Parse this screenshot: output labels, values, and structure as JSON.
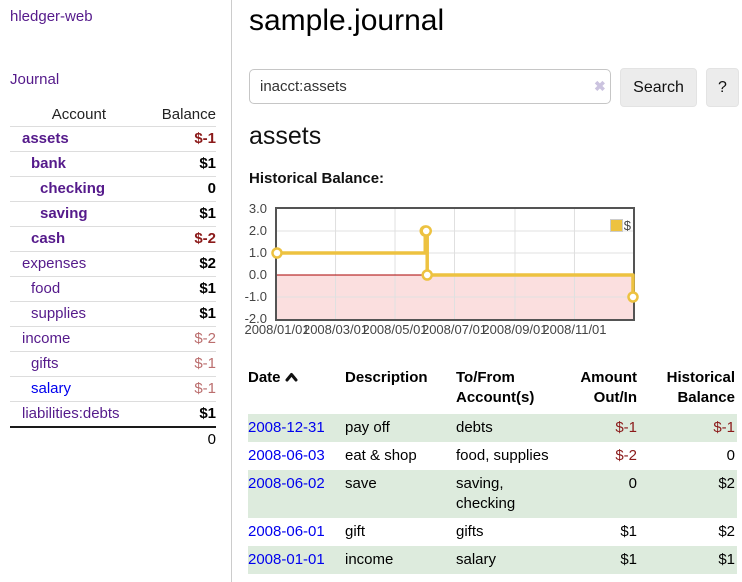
{
  "sidebar": {
    "app_title": "hledger-web",
    "nav": {
      "journal": "Journal"
    },
    "accounts_table": {
      "headers": {
        "account": "Account",
        "balance": "Balance"
      },
      "rows": [
        {
          "name": "assets",
          "balance": "$-1"
        },
        {
          "name": "bank",
          "balance": "$1"
        },
        {
          "name": "checking",
          "balance": "0"
        },
        {
          "name": "saving",
          "balance": "$1"
        },
        {
          "name": "cash",
          "balance": "$-2"
        },
        {
          "name": "expenses",
          "balance": "$2"
        },
        {
          "name": "food",
          "balance": "$1"
        },
        {
          "name": "supplies",
          "balance": "$1"
        },
        {
          "name": "income",
          "balance": "$-2"
        },
        {
          "name": "gifts",
          "balance": "$-1"
        },
        {
          "name": "salary",
          "balance": "$-1"
        },
        {
          "name": "liabilities:debts",
          "balance": "$1"
        }
      ],
      "total": "0"
    }
  },
  "main": {
    "title": "sample.journal",
    "search": {
      "query": "inacct:assets",
      "clear_icon": "✖",
      "button_label": "Search",
      "help_label": "?"
    },
    "account_heading": "assets",
    "chart_label": "Historical Balance:"
  },
  "chart_data": {
    "type": "line",
    "title": "Historical Balance",
    "series": [
      {
        "name": "$",
        "color": "#EDC240",
        "step": true,
        "dates": [
          "2008-01-01",
          "2008-06-01",
          "2008-06-02",
          "2008-06-03",
          "2008-12-31"
        ],
        "points_x_days": [
          0,
          152,
          153,
          154,
          365
        ],
        "values": [
          1,
          2,
          2,
          0,
          -1
        ]
      }
    ],
    "x_range_days": [
      0,
      365
    ],
    "x_ticks": [
      {
        "label": "2008/01/01",
        "day": 0
      },
      {
        "label": "2008/03/01",
        "day": 60
      },
      {
        "label": "2008/05/01",
        "day": 121
      },
      {
        "label": "2008/07/01",
        "day": 182
      },
      {
        "label": "2008/09/01",
        "day": 244
      },
      {
        "label": "2008/11/01",
        "day": 305
      }
    ],
    "y_ticks": [
      "3.0",
      "2.0",
      "1.0",
      "0.0",
      "-1.0",
      "-2.0"
    ],
    "ylim": [
      -2,
      3
    ],
    "legend": {
      "label": "$",
      "position": "top-right"
    },
    "grid": true,
    "grid_color": "#E0E0E0",
    "border_color": "#545454",
    "zero_line_color": "#AA0000",
    "negative_region_color": "#FBDFDF"
  },
  "transactions": {
    "headers": {
      "date": "Date",
      "description": "Description",
      "accounts": "To/From Account(s)",
      "amount": "Amount Out/In",
      "balance": "Historical Balance"
    },
    "sort": {
      "column": "date",
      "direction": "ascending"
    },
    "rows": [
      {
        "date": "2008-12-31",
        "description": "pay off",
        "accounts": "debts",
        "amount": "$-1",
        "balance": "$-1"
      },
      {
        "date": "2008-06-03",
        "description": "eat & shop",
        "accounts": "food, supplies",
        "amount": "$-2",
        "balance": "0"
      },
      {
        "date": "2008-06-02",
        "description": "save",
        "accounts": "saving, checking",
        "amount": "0",
        "balance": "$2"
      },
      {
        "date": "2008-06-01",
        "description": "gift",
        "accounts": "gifts",
        "amount": "$1",
        "balance": "$2"
      },
      {
        "date": "2008-01-01",
        "description": "income",
        "accounts": "salary",
        "amount": "$1",
        "balance": "$1"
      }
    ]
  }
}
